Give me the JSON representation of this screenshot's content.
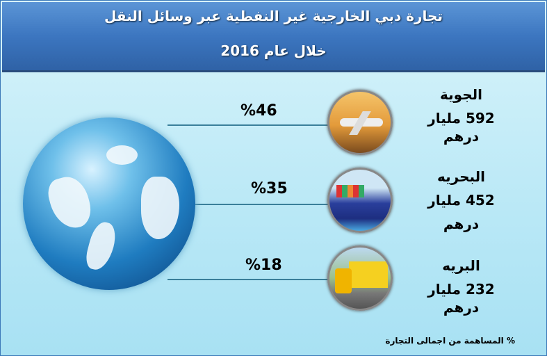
{
  "header": {
    "title": "تجارة دبي الخارجية غير النفطية  عبر وسائل النقل",
    "subtitle": "خلال عام 2016"
  },
  "modes": [
    {
      "name": "الجوية",
      "value": "592 مليار",
      "unit": "درهم",
      "percent": "%46",
      "icon": "airplane-icon"
    },
    {
      "name": "البحريه",
      "value": "452 مليار",
      "unit": "درهم",
      "percent": "%35",
      "icon": "cargo-ship-icon"
    },
    {
      "name": "البريه",
      "value": "232 مليار",
      "unit": "درهم",
      "percent": "%18",
      "icon": "truck-icon"
    }
  ],
  "note": "% المساهمة من اجمالى التجارة",
  "colors": {
    "header": "#3c76c0",
    "background": "#b9e8f6"
  }
}
